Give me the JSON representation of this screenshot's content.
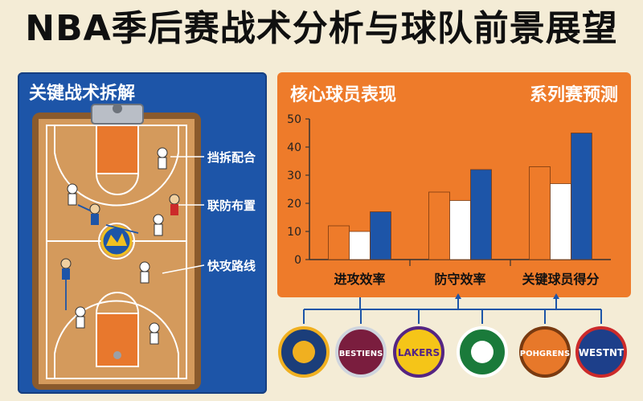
{
  "title": "NBA季后赛战术分析与球队前景展望",
  "left_panel": {
    "heading": "关键战术拆解",
    "tactics": [
      "挡拆配合",
      "联防布置",
      "快攻路线"
    ]
  },
  "right_panel": {
    "heading_left": "核心球员表现",
    "heading_right": "系列赛预测"
  },
  "chart_data": {
    "type": "bar",
    "categories": [
      "进攻效率",
      "防守效率",
      "关键球员得分"
    ],
    "series": [
      {
        "color": "#ee7b2a",
        "values": [
          12,
          24,
          33
        ]
      },
      {
        "color": "#ffffff",
        "values": [
          10,
          21,
          27
        ]
      },
      {
        "color": "#1d55a8",
        "values": [
          17,
          32,
          45
        ]
      }
    ],
    "ylim": [
      0,
      50
    ],
    "yticks": [
      0,
      10,
      20,
      30,
      40,
      50
    ]
  },
  "logos": [
    {
      "name": "pacers-logo",
      "text": ""
    },
    {
      "name": "bestiens-logo",
      "text": "BESTIENS"
    },
    {
      "name": "lakers-logo",
      "text": "LAKERS"
    },
    {
      "name": "celtics-logo",
      "text": ""
    },
    {
      "name": "pohgrens-logo",
      "text": "POHGRENS"
    },
    {
      "name": "westnt-logo",
      "text": "WESTNT"
    }
  ],
  "colors": {
    "orange": "#ee7b2a",
    "blue": "#1d55a8",
    "court": "#c88a4c",
    "paint": "#e8782d"
  }
}
